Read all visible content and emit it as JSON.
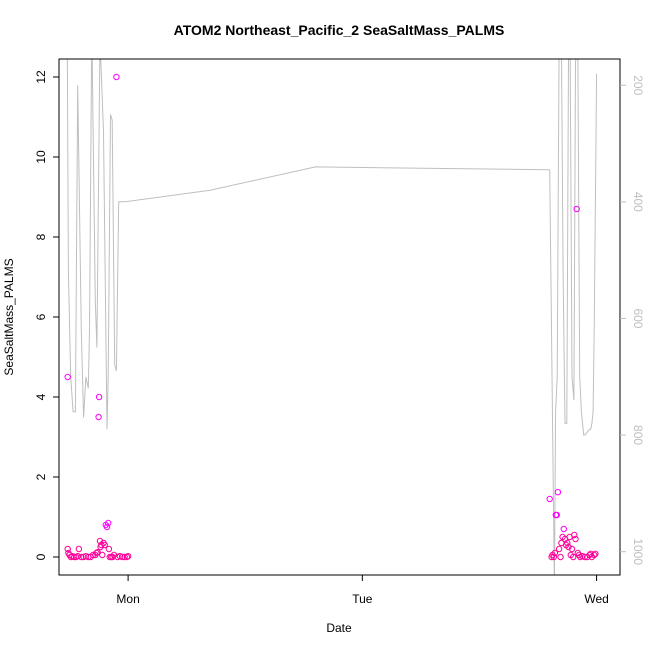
{
  "chart_data": {
    "type": "scatter",
    "title": "ATOM2 Northeast_Pacific_2 SeaSaltMass_PALMS",
    "xlabel": "Date",
    "ylabel": "SeaSaltMass_PALMS",
    "x_ticks": [
      "Mon",
      "Tue",
      "Wed"
    ],
    "x_tick_values": [
      0,
      1,
      2
    ],
    "xlim": [
      -0.295,
      2.1
    ],
    "ylim": [
      -0.45,
      12.45
    ],
    "y_ticks": [
      0,
      2,
      4,
      6,
      8,
      10,
      12
    ],
    "y2_ticks": [
      200,
      400,
      600,
      800,
      1000
    ],
    "y2lim": [
      1040,
      155
    ],
    "y2_reversed": true,
    "grid": false,
    "colors": {
      "points": "#ff00ff",
      "points_dense": "#ff0099",
      "line": "#bfbfbf",
      "axis": "#000000",
      "axis2": "#bfbfbf"
    },
    "series": [
      {
        "type": "line",
        "axis": "right",
        "points": [
          [
            -0.26,
            100
          ],
          [
            -0.255,
            520
          ],
          [
            -0.245,
            700
          ],
          [
            -0.235,
            760
          ],
          [
            -0.225,
            760
          ],
          [
            -0.215,
            200
          ],
          [
            -0.2,
            620
          ],
          [
            -0.19,
            770
          ],
          [
            -0.18,
            700
          ],
          [
            -0.17,
            720
          ],
          [
            -0.165,
            620
          ],
          [
            -0.155,
            100
          ],
          [
            -0.14,
            570
          ],
          [
            -0.133,
            650
          ],
          [
            -0.12,
            120
          ],
          [
            -0.105,
            280
          ],
          [
            -0.09,
            790
          ],
          [
            -0.085,
            700
          ],
          [
            -0.075,
            250
          ],
          [
            -0.068,
            260
          ],
          [
            -0.057,
            680
          ],
          [
            -0.05,
            690
          ],
          [
            -0.04,
            400
          ],
          [
            -0.015,
            400
          ],
          [
            0.35,
            380
          ],
          [
            0.8,
            340
          ],
          [
            1.8,
            345
          ],
          [
            1.82,
            1060
          ],
          [
            1.825,
            760
          ],
          [
            1.832,
            700
          ],
          [
            1.84,
            130
          ],
          [
            1.85,
            120
          ],
          [
            1.857,
            520
          ],
          [
            1.865,
            780
          ],
          [
            1.873,
            780
          ],
          [
            1.88,
            150
          ],
          [
            1.887,
            120
          ],
          [
            1.895,
            700
          ],
          [
            1.903,
            740
          ],
          [
            1.91,
            160
          ],
          [
            1.92,
            130
          ],
          [
            1.928,
            700
          ],
          [
            1.935,
            760
          ],
          [
            1.945,
            800
          ],
          [
            1.95,
            800
          ],
          [
            1.96,
            795
          ],
          [
            1.97,
            790
          ],
          [
            1.975,
            790
          ],
          [
            1.98,
            780
          ],
          [
            1.985,
            760
          ],
          [
            1.99,
            620
          ],
          [
            1.995,
            400
          ],
          [
            2.0,
            180
          ]
        ]
      },
      {
        "type": "scatter",
        "axis": "left",
        "points": [
          [
            -0.258,
            4.5
          ],
          [
            -0.258,
            0.2
          ],
          [
            -0.255,
            0.1
          ],
          [
            -0.25,
            0.05
          ],
          [
            -0.244,
            0.0
          ],
          [
            -0.238,
            0.02
          ],
          [
            -0.23,
            0.0
          ],
          [
            -0.222,
            0.0
          ],
          [
            -0.215,
            0.02
          ],
          [
            -0.21,
            0.2
          ],
          [
            -0.2,
            0.0
          ],
          [
            -0.19,
            0.0
          ],
          [
            -0.18,
            0.02
          ],
          [
            -0.17,
            0.0
          ],
          [
            -0.16,
            0.0
          ],
          [
            -0.15,
            0.05
          ],
          [
            -0.14,
            0.05
          ],
          [
            -0.135,
            0.1
          ],
          [
            -0.13,
            0.12
          ],
          [
            -0.126,
            3.5
          ],
          [
            -0.124,
            4.0
          ],
          [
            -0.12,
            0.4
          ],
          [
            -0.118,
            0.25
          ],
          [
            -0.114,
            0.3
          ],
          [
            -0.11,
            0.05
          ],
          [
            -0.105,
            0.35
          ],
          [
            -0.1,
            0.3
          ],
          [
            -0.095,
            0.8
          ],
          [
            -0.09,
            0.75
          ],
          [
            -0.085,
            0.85
          ],
          [
            -0.082,
            0.2
          ],
          [
            -0.078,
            0.0
          ],
          [
            -0.072,
            0.0
          ],
          [
            -0.066,
            0.0
          ],
          [
            -0.06,
            0.05
          ],
          [
            -0.05,
            12.0
          ],
          [
            -0.045,
            0.0
          ],
          [
            -0.035,
            0.02
          ],
          [
            -0.025,
            0.0
          ],
          [
            -0.015,
            0.0
          ],
          [
            -0.005,
            0.0
          ],
          [
            0.0,
            0.02
          ],
          [
            1.8,
            1.45
          ],
          [
            1.808,
            0.0
          ],
          [
            1.812,
            0.05
          ],
          [
            1.818,
            0.0
          ],
          [
            1.822,
            0.1
          ],
          [
            1.826,
            1.05
          ],
          [
            1.83,
            1.05
          ],
          [
            1.835,
            1.62
          ],
          [
            1.84,
            0.2
          ],
          [
            1.846,
            0.0
          ],
          [
            1.85,
            0.35
          ],
          [
            1.855,
            0.5
          ],
          [
            1.86,
            0.7
          ],
          [
            1.865,
            0.45
          ],
          [
            1.87,
            0.3
          ],
          [
            1.875,
            0.35
          ],
          [
            1.88,
            0.25
          ],
          [
            1.885,
            0.5
          ],
          [
            1.89,
            0.05
          ],
          [
            1.895,
            0.2
          ],
          [
            1.9,
            0.0
          ],
          [
            1.905,
            0.55
          ],
          [
            1.91,
            0.45
          ],
          [
            1.915,
            8.7
          ],
          [
            1.92,
            0.1
          ],
          [
            1.925,
            0.05
          ],
          [
            1.93,
            0.0
          ],
          [
            1.94,
            0.02
          ],
          [
            1.95,
            0.0
          ],
          [
            1.96,
            0.0
          ],
          [
            1.97,
            0.05
          ],
          [
            1.975,
            0.08
          ],
          [
            1.98,
            0.0
          ],
          [
            1.99,
            0.05
          ],
          [
            1.995,
            0.08
          ]
        ]
      }
    ]
  }
}
